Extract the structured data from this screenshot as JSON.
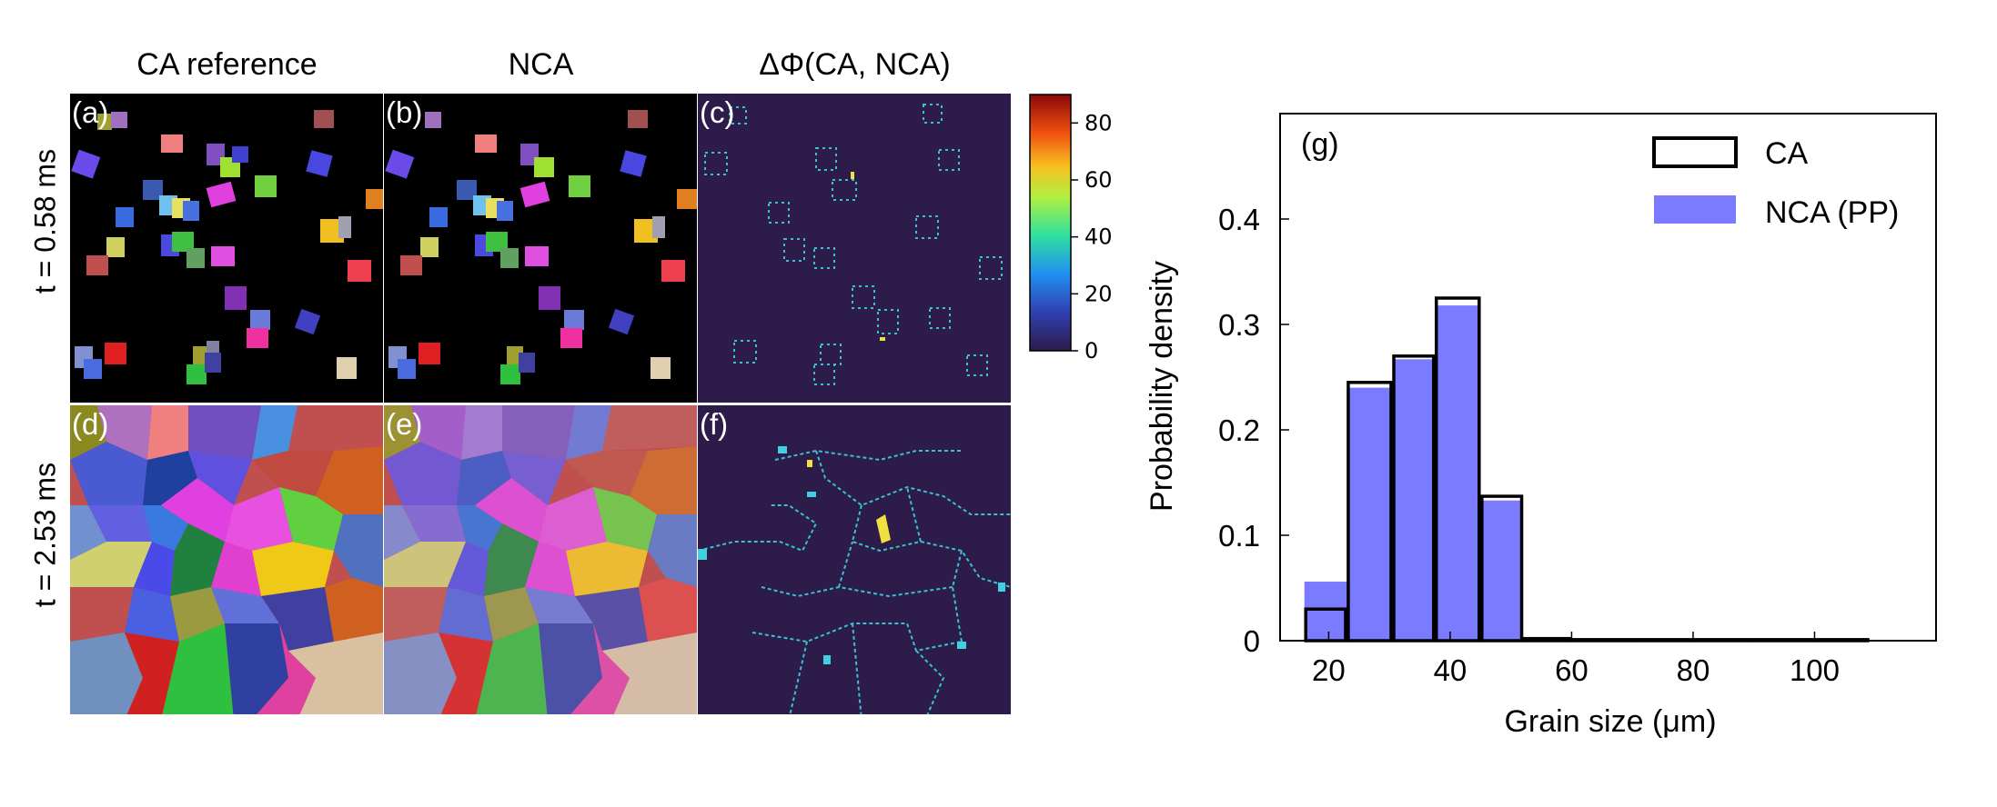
{
  "columns": {
    "ca": "CA reference",
    "nca": "NCA",
    "diff": "ΔΦ(CA, NCA)"
  },
  "rows": {
    "top": "t = 0.58 ms",
    "bottom": "t = 2.53 ms"
  },
  "panels": {
    "a": "(a)",
    "b": "(b)",
    "c": "(c)",
    "d": "(d)",
    "e": "(e)",
    "f": "(f)"
  },
  "colorbar": {
    "ticks": [
      "0",
      "20",
      "40",
      "60",
      "80"
    ],
    "min": 0,
    "max": 90
  },
  "colors": {
    "diff_background": "#2d1b4a",
    "ca_edge": "#000000",
    "nca_fill": "#7b7bff"
  },
  "chart_data": {
    "type": "bar",
    "panel_label": "(g)",
    "xlabel": "Grain size (μm)",
    "ylabel": "Probability density",
    "xlim": [
      12,
      120
    ],
    "ylim": [
      0,
      0.5
    ],
    "xticks": [
      20,
      40,
      60,
      80,
      100
    ],
    "yticks": [
      0,
      0.1,
      0.2,
      0.3,
      0.4
    ],
    "ytick_labels": [
      "0",
      "0.1",
      "0.2",
      "0.3",
      "0.4"
    ],
    "bin_edges": [
      16,
      23,
      30.5,
      37.5,
      45,
      52,
      60,
      70,
      80,
      90,
      100,
      109
    ],
    "series": [
      {
        "name": "CA",
        "style": "outline",
        "values": [
          0.03,
          0.245,
          0.27,
          0.325,
          0.137,
          0.002,
          0.001,
          0.001,
          0.001,
          0.001,
          0.001
        ]
      },
      {
        "name": "NCA (PP)",
        "style": "filled",
        "values": [
          0.056,
          0.24,
          0.267,
          0.318,
          0.133,
          0.002,
          0.001,
          0.001,
          0.001,
          0.001,
          0.001
        ]
      }
    ],
    "legend": [
      "CA",
      "NCA (PP)"
    ],
    "legend_position": "top-right"
  }
}
